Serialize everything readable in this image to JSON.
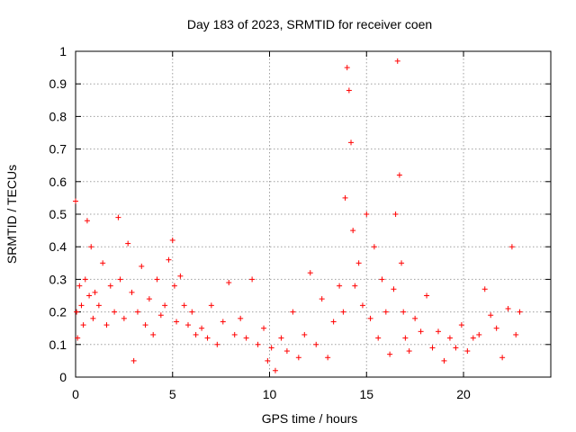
{
  "chart_data": {
    "type": "scatter",
    "title": "Day 183 of 2023, SRMTID for receiver coen",
    "xlabel": "GPS time / hours",
    "ylabel": "SRMTID / TECUs",
    "xlim": [
      0,
      24.5
    ],
    "ylim": [
      0,
      1
    ],
    "xticks": [
      0,
      5,
      10,
      15,
      20
    ],
    "xtick_labels": [
      "0",
      "5",
      "10",
      "15",
      "20"
    ],
    "yticks": [
      0,
      0.1,
      0.2,
      0.3,
      0.4,
      0.5,
      0.6,
      0.7,
      0.8,
      0.9,
      1
    ],
    "ytick_labels": [
      "0",
      "0.1",
      "0.2",
      "0.3",
      "0.4",
      "0.5",
      "0.6",
      "0.7",
      "0.8",
      "0.9",
      "1"
    ],
    "grid": true,
    "marker": "+",
    "series": [
      {
        "name": "SRMTID",
        "color": "#ff0000",
        "x": [
          0.0,
          0.05,
          0.1,
          0.2,
          0.3,
          0.4,
          0.5,
          0.6,
          0.7,
          0.8,
          0.9,
          1.0,
          1.2,
          1.4,
          1.6,
          1.8,
          2.0,
          2.2,
          2.3,
          2.5,
          2.7,
          2.9,
          3.0,
          3.2,
          3.4,
          3.6,
          3.8,
          4.0,
          4.2,
          4.4,
          4.6,
          4.8,
          5.0,
          5.1,
          5.2,
          5.4,
          5.6,
          5.8,
          6.0,
          6.2,
          6.5,
          6.8,
          7.0,
          7.3,
          7.6,
          7.9,
          8.2,
          8.5,
          8.8,
          9.1,
          9.4,
          9.7,
          9.9,
          10.1,
          10.3,
          10.6,
          10.9,
          11.2,
          11.5,
          11.8,
          12.1,
          12.4,
          12.7,
          13.0,
          13.3,
          13.6,
          13.8,
          13.9,
          14.0,
          14.1,
          14.2,
          14.3,
          14.4,
          14.6,
          14.8,
          15.0,
          15.2,
          15.4,
          15.6,
          15.8,
          16.0,
          16.2,
          16.4,
          16.5,
          16.6,
          16.7,
          16.8,
          16.9,
          17.0,
          17.2,
          17.5,
          17.8,
          18.1,
          18.4,
          18.7,
          19.0,
          19.3,
          19.6,
          19.9,
          20.2,
          20.5,
          20.8,
          21.1,
          21.4,
          21.7,
          22.0,
          22.3,
          22.5,
          22.7,
          22.9
        ],
        "y": [
          0.54,
          0.2,
          0.12,
          0.28,
          0.22,
          0.16,
          0.3,
          0.48,
          0.25,
          0.4,
          0.18,
          0.26,
          0.22,
          0.35,
          0.16,
          0.28,
          0.2,
          0.49,
          0.3,
          0.18,
          0.41,
          0.26,
          0.05,
          0.2,
          0.34,
          0.16,
          0.24,
          0.13,
          0.3,
          0.19,
          0.22,
          0.36,
          0.42,
          0.28,
          0.17,
          0.31,
          0.22,
          0.16,
          0.2,
          0.13,
          0.15,
          0.12,
          0.22,
          0.1,
          0.17,
          0.29,
          0.13,
          0.18,
          0.12,
          0.3,
          0.1,
          0.15,
          0.05,
          0.09,
          0.02,
          0.12,
          0.08,
          0.2,
          0.06,
          0.13,
          0.32,
          0.1,
          0.24,
          0.06,
          0.17,
          0.28,
          0.2,
          0.55,
          0.95,
          0.88,
          0.72,
          0.45,
          0.28,
          0.35,
          0.22,
          0.5,
          0.18,
          0.4,
          0.12,
          0.3,
          0.2,
          0.07,
          0.27,
          0.5,
          0.97,
          0.62,
          0.35,
          0.2,
          0.12,
          0.08,
          0.18,
          0.14,
          0.25,
          0.09,
          0.14,
          0.05,
          0.12,
          0.09,
          0.16,
          0.08,
          0.12,
          0.13,
          0.27,
          0.19,
          0.15,
          0.06,
          0.21,
          0.4,
          0.13,
          0.2
        ]
      }
    ]
  }
}
